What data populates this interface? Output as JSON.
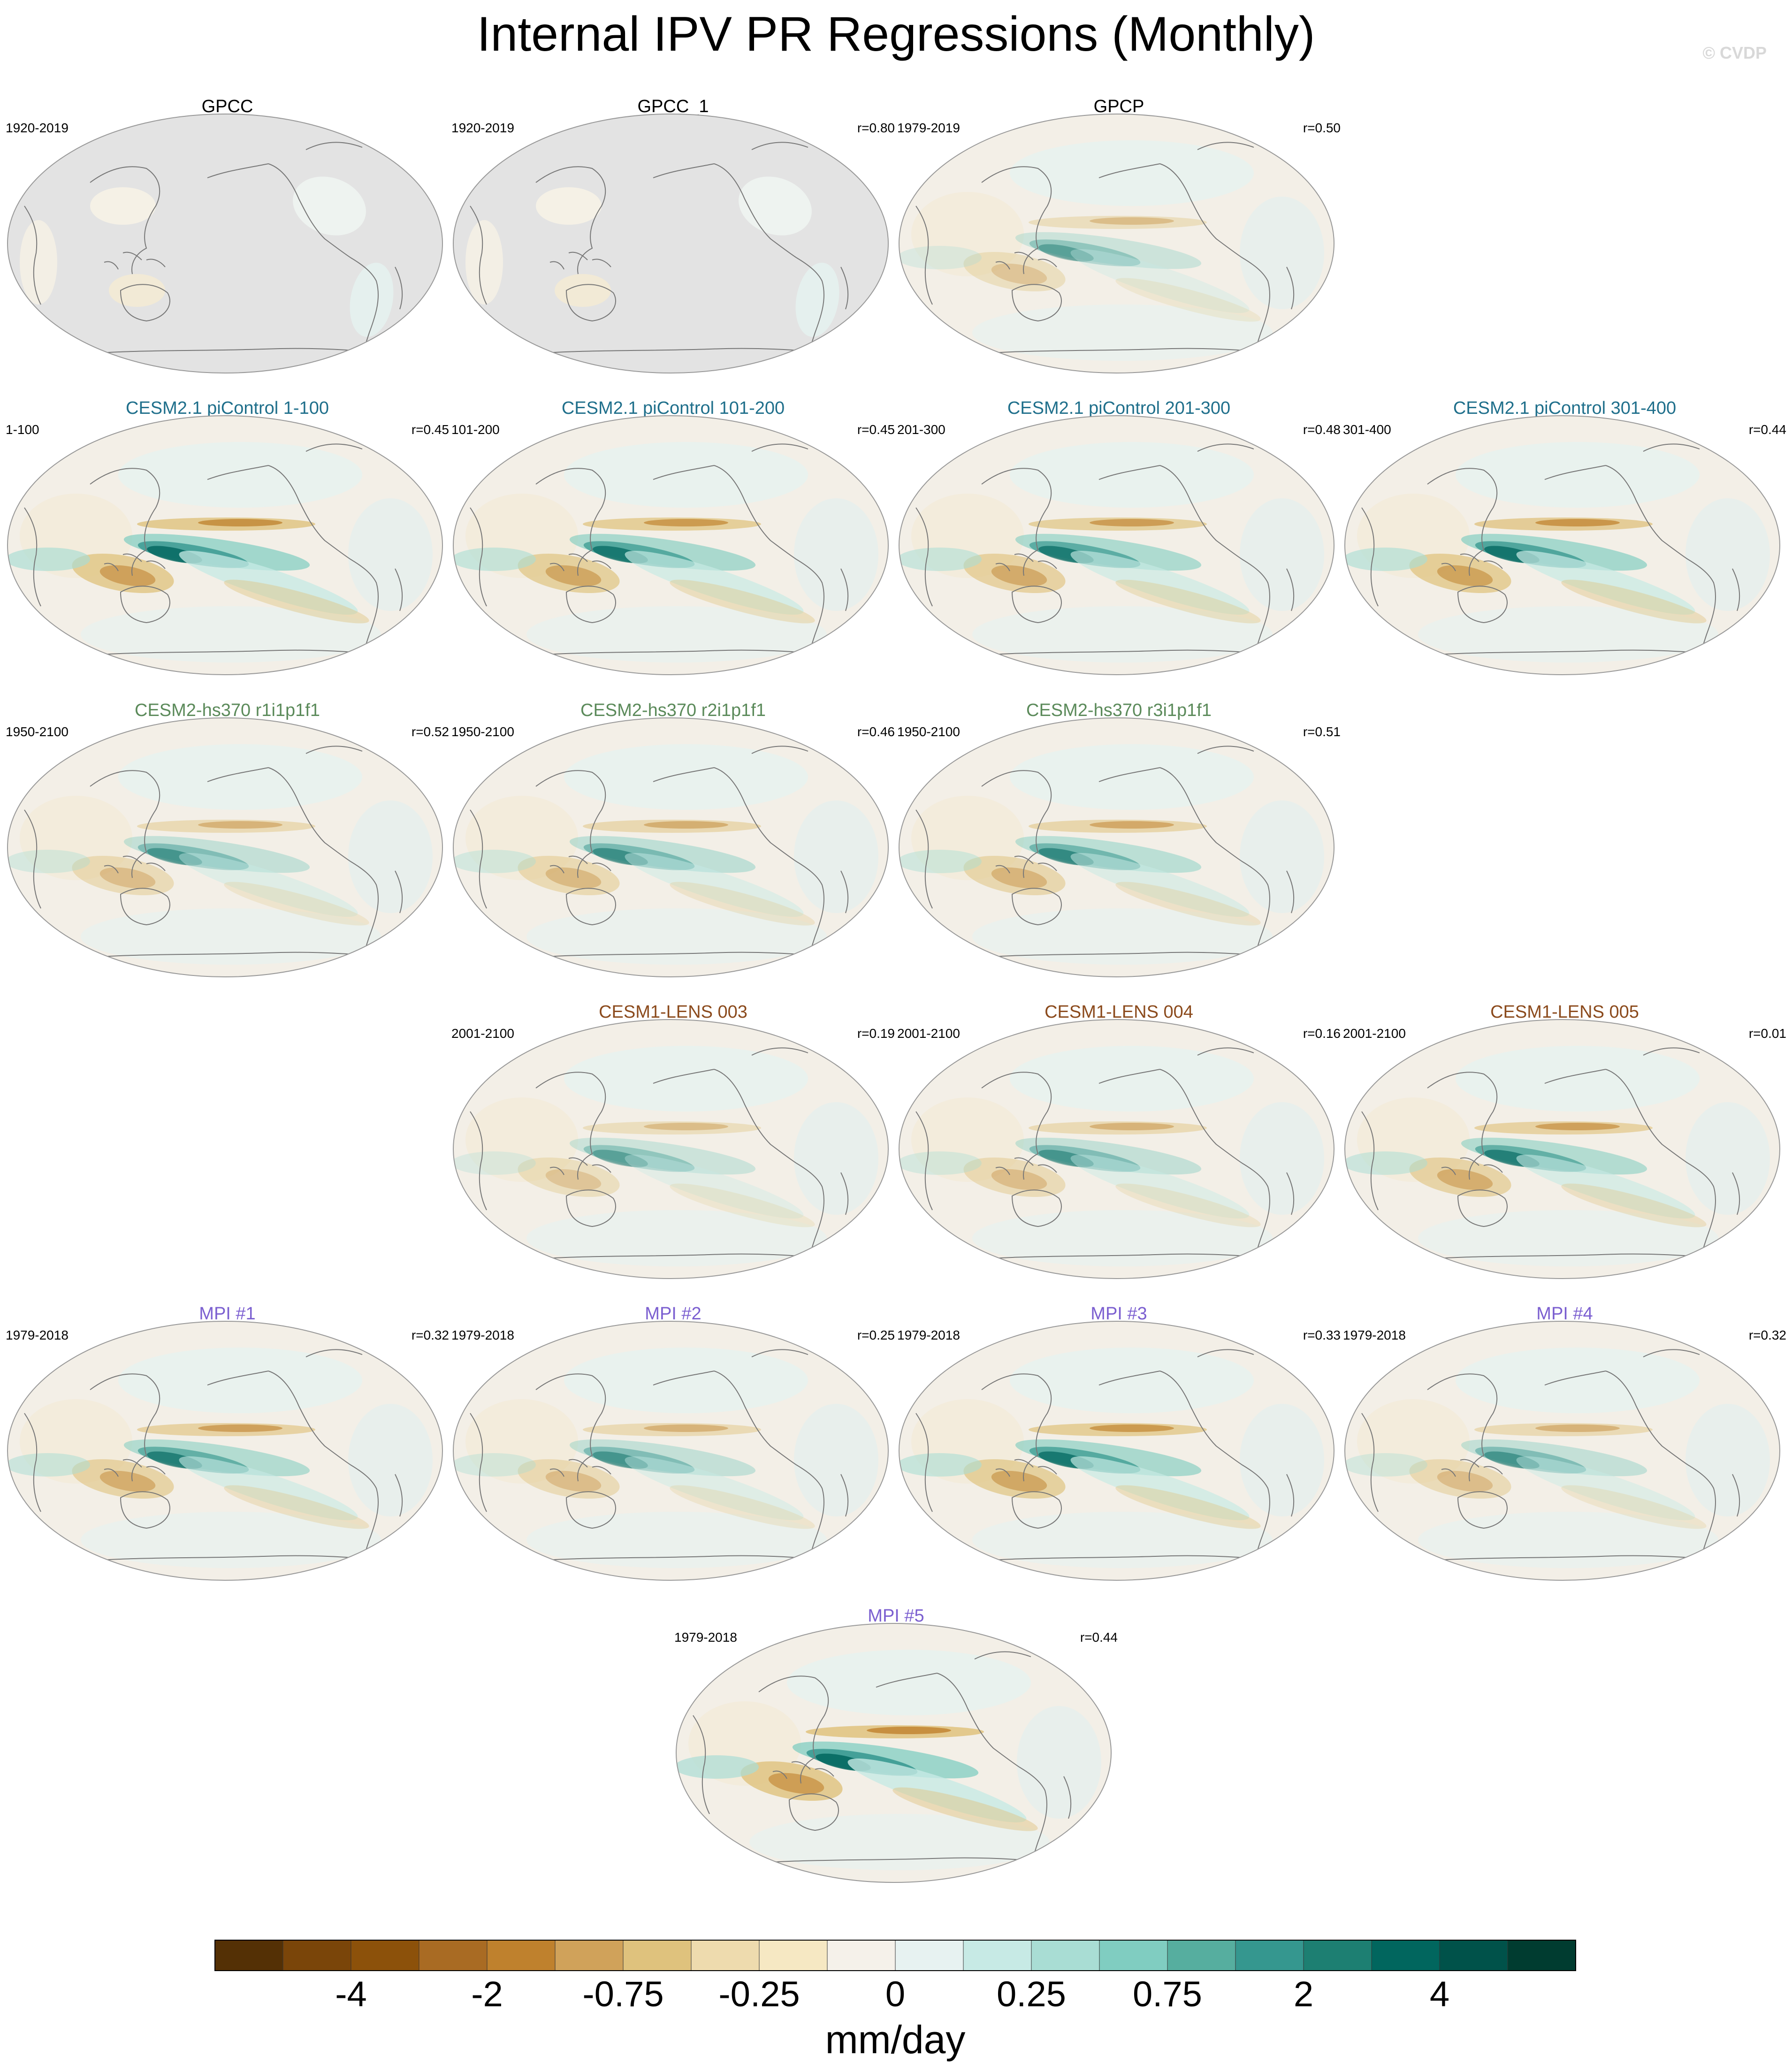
{
  "header": {
    "title": "Internal IPV PR Regressions (Monthly)",
    "copyright": "© CVDP"
  },
  "chart_data": {
    "type": "heatmap",
    "projection": "robinson-like global maps centered on the Pacific",
    "panels": [
      {
        "row": 0,
        "col": 0,
        "title": "GPCC",
        "period": "1920-2019",
        "r": "",
        "title_color": "#000000",
        "land_only": true,
        "pattern_strength": 0.15
      },
      {
        "row": 0,
        "col": 1,
        "title": "GPCC_1",
        "period": "1920-2019",
        "r": "r=0.80",
        "title_color": "#000000",
        "land_only": true,
        "pattern_strength": 0.15
      },
      {
        "row": 0,
        "col": 2,
        "title": "GPCP",
        "period": "1979-2019",
        "r": "r=0.50",
        "title_color": "#000000",
        "land_only": false,
        "pattern_strength": 0.45
      },
      {
        "row": 1,
        "col": 0,
        "title": "CESM2.1 piControl 1-100",
        "period": "1-100",
        "r": "r=0.45",
        "title_color": "#1f6f8b",
        "land_only": false,
        "pattern_strength": 0.95
      },
      {
        "row": 1,
        "col": 1,
        "title": "CESM2.1 piControl 101-200",
        "period": "101-200",
        "r": "r=0.45",
        "title_color": "#1f6f8b",
        "land_only": false,
        "pattern_strength": 0.85
      },
      {
        "row": 1,
        "col": 2,
        "title": "CESM2.1 piControl 201-300",
        "period": "201-300",
        "r": "r=0.48",
        "title_color": "#1f6f8b",
        "land_only": false,
        "pattern_strength": 0.8
      },
      {
        "row": 1,
        "col": 3,
        "title": "CESM2.1 piControl 301-400",
        "period": "301-400",
        "r": "r=0.44",
        "title_color": "#1f6f8b",
        "land_only": false,
        "pattern_strength": 0.9
      },
      {
        "row": 2,
        "col": 0,
        "title": "CESM2-hs370 r1i1p1f1",
        "period": "1950-2100",
        "r": "r=0.52",
        "title_color": "#5b8a5a",
        "land_only": false,
        "pattern_strength": 0.55
      },
      {
        "row": 2,
        "col": 1,
        "title": "CESM2-hs370 r2i1p1f1",
        "period": "1950-2100",
        "r": "r=0.46",
        "title_color": "#5b8a5a",
        "land_only": false,
        "pattern_strength": 0.6
      },
      {
        "row": 2,
        "col": 2,
        "title": "CESM2-hs370 r3i1p1f1",
        "period": "1950-2100",
        "r": "r=0.51",
        "title_color": "#5b8a5a",
        "land_only": false,
        "pattern_strength": 0.65
      },
      {
        "row": 3,
        "col": 1,
        "title": "CESM1-LENS 003",
        "period": "2001-2100",
        "r": "r=0.19",
        "title_color": "#8b4a1c",
        "land_only": false,
        "pattern_strength": 0.45
      },
      {
        "row": 3,
        "col": 2,
        "title": "CESM1-LENS 004",
        "period": "2001-2100",
        "r": "r=0.16",
        "title_color": "#8b4a1c",
        "land_only": false,
        "pattern_strength": 0.55
      },
      {
        "row": 3,
        "col": 3,
        "title": "CESM1-LENS 005",
        "period": "2001-2100",
        "r": "r=0.01",
        "title_color": "#8b4a1c",
        "land_only": false,
        "pattern_strength": 0.75
      },
      {
        "row": 4,
        "col": 0,
        "title": "MPI #1",
        "period": "1979-2018",
        "r": "r=0.32",
        "title_color": "#7b5fd0",
        "land_only": false,
        "pattern_strength": 0.75
      },
      {
        "row": 4,
        "col": 1,
        "title": "MPI #2",
        "period": "1979-2018",
        "r": "r=0.25",
        "title_color": "#7b5fd0",
        "land_only": false,
        "pattern_strength": 0.55
      },
      {
        "row": 4,
        "col": 2,
        "title": "MPI #3",
        "period": "1979-2018",
        "r": "r=0.33",
        "title_color": "#7b5fd0",
        "land_only": false,
        "pattern_strength": 0.85
      },
      {
        "row": 4,
        "col": 3,
        "title": "MPI #4",
        "period": "1979-2018",
        "r": "r=0.32",
        "title_color": "#7b5fd0",
        "land_only": false,
        "pattern_strength": 0.55
      },
      {
        "row": 5,
        "col": 1.5,
        "title": "MPI #5",
        "period": "1979-2018",
        "r": "r=0.44",
        "title_color": "#7b5fd0",
        "land_only": false,
        "pattern_strength": 1.0
      }
    ],
    "colorbar": {
      "label": "mm/day",
      "tick_labels": [
        "-4",
        "-2",
        "-0.75",
        "-0.25",
        "0",
        "0.25",
        "0.75",
        "2",
        "4"
      ],
      "colors": [
        "#543005",
        "#7a4509",
        "#8c510a",
        "#a96b23",
        "#bf812d",
        "#d0a25a",
        "#dfc27d",
        "#eedbae",
        "#f6e8c3",
        "#f5f1ea",
        "#e7f2f1",
        "#c7eae5",
        "#a9ddd4",
        "#80cdc1",
        "#56ae9f",
        "#35978f",
        "#1d7f72",
        "#01665e",
        "#00524a",
        "#003c30"
      ]
    },
    "missing_color": "#e3e3e3"
  }
}
